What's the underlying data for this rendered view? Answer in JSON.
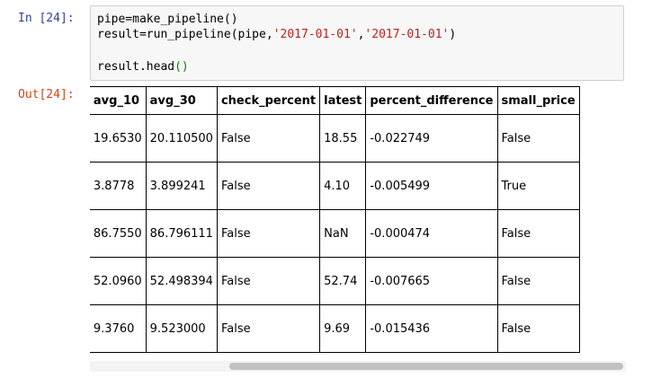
{
  "input_prompt": "In [24]:",
  "output_prompt": "Out[24]:",
  "code": {
    "line1": "pipe=make_pipeline()",
    "line2_pre": "result=run_pipeline(pipe,",
    "line2_str1": "'2017-01-01'",
    "line2_comma": ",",
    "line2_str2": "'2017-01-01'",
    "line2_post": ")",
    "line3_pre": "result.head",
    "line3_paren": "()"
  },
  "table": {
    "index_fragment": "])",
    "columns": [
      "avg_10",
      "avg_30",
      "check_percent",
      "latest",
      "percent_difference",
      "small_price"
    ],
    "rows": [
      [
        "19.6530",
        "20.110500",
        "False",
        "18.55",
        "-0.022749",
        "False"
      ],
      [
        "3.8778",
        "3.899241",
        "False",
        "4.10",
        "-0.005499",
        "True"
      ],
      [
        "86.7550",
        "86.796111",
        "False",
        "NaN",
        "-0.000474",
        "False"
      ],
      [
        "52.0960",
        "52.498394",
        "False",
        "52.74",
        "-0.007665",
        "False"
      ],
      [
        "9.3760",
        "9.523000",
        "False",
        "9.69",
        "-0.015436",
        "False"
      ]
    ]
  }
}
